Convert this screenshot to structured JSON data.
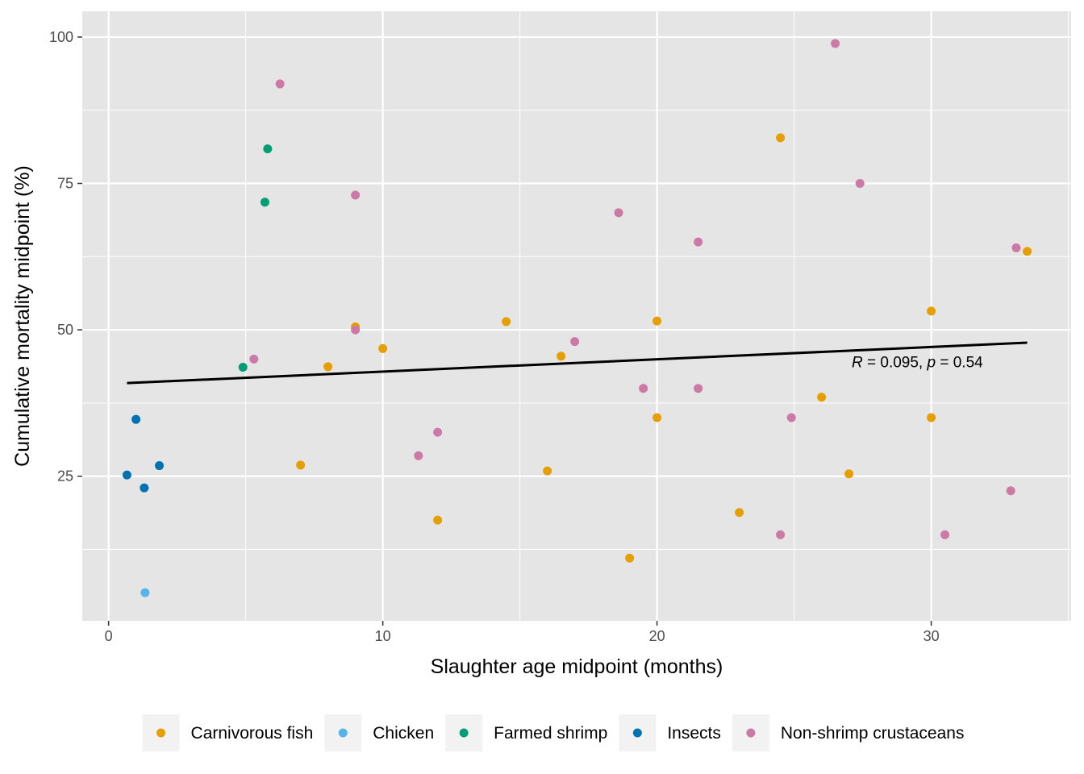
{
  "chart_data": {
    "type": "scatter",
    "xlabel": "Slaughter age midpoint (months)",
    "ylabel": "Cumulative mortality midpoint (%)",
    "xlim": [
      -0.96,
      35.1
    ],
    "ylim": [
      0.3,
      104.4
    ],
    "x_ticks": [
      0,
      10,
      20,
      30
    ],
    "y_ticks": [
      25,
      50,
      75,
      100
    ],
    "x_tick_labels": [
      "0",
      "10",
      "20",
      "30"
    ],
    "y_tick_labels": [
      "25",
      "50",
      "75",
      "100"
    ],
    "grid": true,
    "legend_position": "bottom",
    "colors": {
      "Carnivorous fish": "#e69f00",
      "Chicken": "#56b4e9",
      "Farmed shrimp": "#009e73",
      "Insects": "#0072b2",
      "Non-shrimp crustaceans": "#cc79a7",
      "panel": "#e5e5e5",
      "grid": "#ffffff",
      "regression": "#000000"
    },
    "series": [
      {
        "name": "Carnivorous fish",
        "points": [
          {
            "x": 7.0,
            "y": 26.9
          },
          {
            "x": 8.0,
            "y": 43.7
          },
          {
            "x": 9.0,
            "y": 50.5
          },
          {
            "x": 10.0,
            "y": 46.8
          },
          {
            "x": 12.0,
            "y": 17.5
          },
          {
            "x": 14.5,
            "y": 51.4
          },
          {
            "x": 16.0,
            "y": 25.9
          },
          {
            "x": 16.5,
            "y": 45.5
          },
          {
            "x": 19.0,
            "y": 11.0
          },
          {
            "x": 20.0,
            "y": 51.5
          },
          {
            "x": 20.0,
            "y": 35.0
          },
          {
            "x": 23.0,
            "y": 18.8
          },
          {
            "x": 24.5,
            "y": 82.8
          },
          {
            "x": 26.0,
            "y": 38.5
          },
          {
            "x": 27.0,
            "y": 25.4
          },
          {
            "x": 30.0,
            "y": 53.2
          },
          {
            "x": 30.0,
            "y": 35.0
          },
          {
            "x": 33.5,
            "y": 63.4
          }
        ]
      },
      {
        "name": "Chicken",
        "points": [
          {
            "x": 1.33,
            "y": 5.1
          }
        ]
      },
      {
        "name": "Farmed shrimp",
        "points": [
          {
            "x": 4.9,
            "y": 43.6
          },
          {
            "x": 5.7,
            "y": 71.8
          },
          {
            "x": 5.8,
            "y": 80.9
          }
        ]
      },
      {
        "name": "Insects",
        "points": [
          {
            "x": 0.67,
            "y": 25.2
          },
          {
            "x": 1.0,
            "y": 34.7
          },
          {
            "x": 1.3,
            "y": 23.0
          },
          {
            "x": 1.85,
            "y": 26.8
          }
        ]
      },
      {
        "name": "Non-shrimp crustaceans",
        "points": [
          {
            "x": 5.3,
            "y": 45.0
          },
          {
            "x": 6.25,
            "y": 92.0
          },
          {
            "x": 9.0,
            "y": 73.0
          },
          {
            "x": 9.0,
            "y": 50.0
          },
          {
            "x": 11.3,
            "y": 28.5
          },
          {
            "x": 12.0,
            "y": 32.5
          },
          {
            "x": 17.0,
            "y": 48.0
          },
          {
            "x": 18.6,
            "y": 70.0
          },
          {
            "x": 19.5,
            "y": 40.0
          },
          {
            "x": 21.5,
            "y": 65.0
          },
          {
            "x": 21.5,
            "y": 40.0
          },
          {
            "x": 24.5,
            "y": 15.0
          },
          {
            "x": 24.9,
            "y": 35.0
          },
          {
            "x": 26.5,
            "y": 98.9
          },
          {
            "x": 27.4,
            "y": 75.0
          },
          {
            "x": 30.5,
            "y": 15.0
          },
          {
            "x": 32.9,
            "y": 22.5
          },
          {
            "x": 33.1,
            "y": 64.0
          }
        ]
      }
    ],
    "regression_line": {
      "x": [
        0.67,
        33.5
      ],
      "y": [
        40.9,
        47.8
      ]
    },
    "annotation": {
      "r_symbol": "R",
      "r_value_text": " = 0.095, ",
      "p_symbol": "p",
      "p_value_text": " = 0.54",
      "x": 27.1,
      "y": 43.6
    }
  }
}
